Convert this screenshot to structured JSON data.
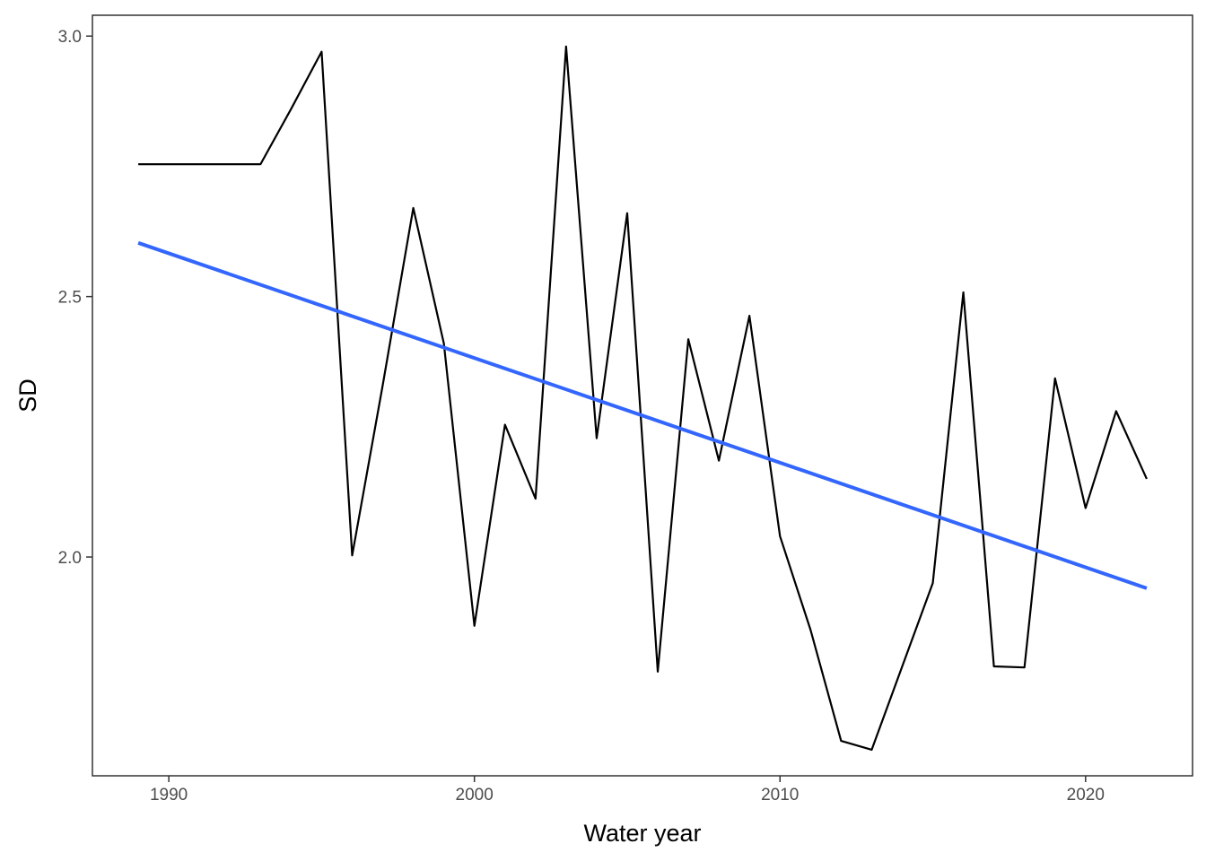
{
  "chart_data": {
    "type": "line",
    "xlabel": "Water year",
    "ylabel": "SD",
    "xlim": [
      1987.5,
      2023.5
    ],
    "ylim": [
      1.58,
      3.04
    ],
    "x_ticks": [
      1990,
      2000,
      2010,
      2020
    ],
    "x_tick_labels": [
      "1990",
      "2000",
      "2010",
      "2020"
    ],
    "y_ticks": [
      2.0,
      2.5,
      3.0
    ],
    "y_tick_labels": [
      "2.0",
      "2.5",
      "3.0"
    ],
    "grid": false,
    "series": [
      {
        "color": "#000000",
        "x": [
          1989,
          1990,
          1991,
          1992,
          1993,
          1994,
          1995,
          1996,
          1997,
          1998,
          1999,
          2000,
          2001,
          2002,
          2003,
          2004,
          2005,
          2006,
          2007,
          2008,
          2009,
          2010,
          2011,
          2012,
          2013,
          2014,
          2015,
          2016,
          2017,
          2018,
          2019,
          2020,
          2021,
          2022
        ],
        "values": [
          2.754,
          2.754,
          2.754,
          2.754,
          2.754,
          2.86,
          2.97,
          2.003,
          2.33,
          2.67,
          2.41,
          1.868,
          2.254,
          2.112,
          2.98,
          2.228,
          2.66,
          1.78,
          2.418,
          2.185,
          2.463,
          2.04,
          1.86,
          1.647,
          1.63,
          1.79,
          1.95,
          2.508,
          1.79,
          1.788,
          2.343,
          2.094,
          2.28,
          2.15
        ]
      },
      {
        "color": "#3366FF",
        "x": [
          1989,
          2022
        ],
        "values": [
          2.603,
          1.94
        ]
      }
    ]
  }
}
